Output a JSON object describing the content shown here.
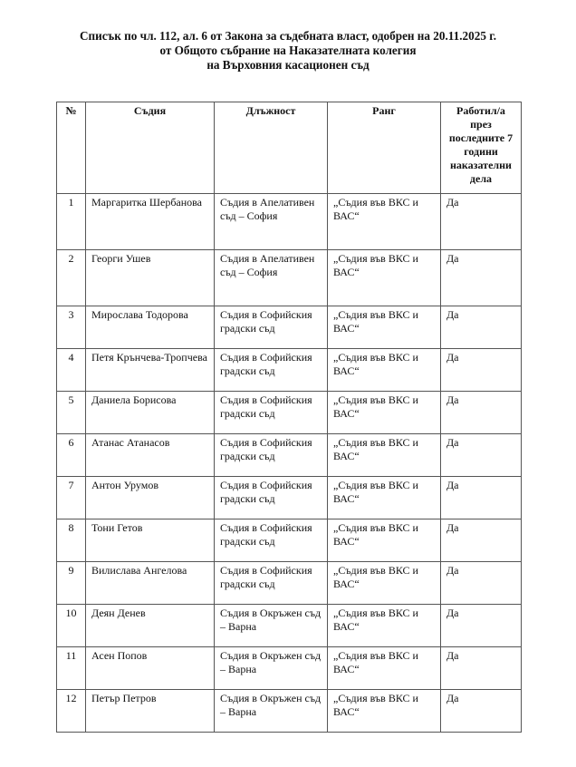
{
  "title": {
    "line1": "Списък по чл. 112, ал. 6 от Закона за съдебната власт, одобрен на 20.11.2025 г.",
    "line2": "от Общото събрание на Наказателната колегия",
    "line3": "на Върховния касационен съд"
  },
  "table": {
    "headers": [
      "№",
      "Съдия",
      "Длъжност",
      "Ранг",
      "Работил/а през последните 7 години наказателни дела"
    ],
    "rows": [
      {
        "no": "1",
        "judge": "Маргаритка Шербанова",
        "position": "Съдия в Апелативен съд – София",
        "rank": "„Съдия във ВКС и ВАС“",
        "worked": "Да"
      },
      {
        "no": "2",
        "judge": "Георги Ушев",
        "position": "Съдия в Апелативен съд – София",
        "rank": "„Съдия във ВКС и ВАС“",
        "worked": "Да"
      },
      {
        "no": "3",
        "judge": "Мирослава Тодорова",
        "position": "Съдия в Софийския градски съд",
        "rank": "„Съдия във ВКС и ВАС“",
        "worked": "Да"
      },
      {
        "no": "4",
        "judge": "Петя Крънчева-Тропчева",
        "position": "Съдия в Софийския градски съд",
        "rank": "„Съдия във ВКС и ВАС“",
        "worked": "Да"
      },
      {
        "no": "5",
        "judge": "Даниела Борисова",
        "position": "Съдия в Софийския градски съд",
        "rank": "„Съдия във ВКС и ВАС“",
        "worked": "Да"
      },
      {
        "no": "6",
        "judge": "Атанас Атанасов",
        "position": "Съдия в Софийския градски съд",
        "rank": "„Съдия във ВКС и ВАС“",
        "worked": "Да"
      },
      {
        "no": "7",
        "judge": "Антон Урумов",
        "position": "Съдия в Софийския градски съд",
        "rank": "„Съдия във ВКС и ВАС“",
        "worked": "Да"
      },
      {
        "no": "8",
        "judge": "Тони Гетов",
        "position": "Съдия в Софийския градски съд",
        "rank": "„Съдия във ВКС и ВАС“",
        "worked": "Да"
      },
      {
        "no": "9",
        "judge": "Вилислава Ангелова",
        "position": "Съдия в Софийския градски съд",
        "rank": "„Съдия във ВКС и ВАС“",
        "worked": "Да"
      },
      {
        "no": "10",
        "judge": "Деян Денев",
        "position": "Съдия в Окръжен съд – Варна",
        "rank": "„Съдия във ВКС и ВАС“",
        "worked": "Да"
      },
      {
        "no": "11",
        "judge": "Асен Попов",
        "position": "Съдия в Окръжен съд – Варна",
        "rank": "„Съдия във ВКС и ВАС“",
        "worked": "Да"
      },
      {
        "no": "12",
        "judge": "Петър Петров",
        "position": "Съдия в Окръжен съд – Варна",
        "rank": "„Съдия във ВКС и ВАС“",
        "worked": "Да"
      }
    ]
  }
}
